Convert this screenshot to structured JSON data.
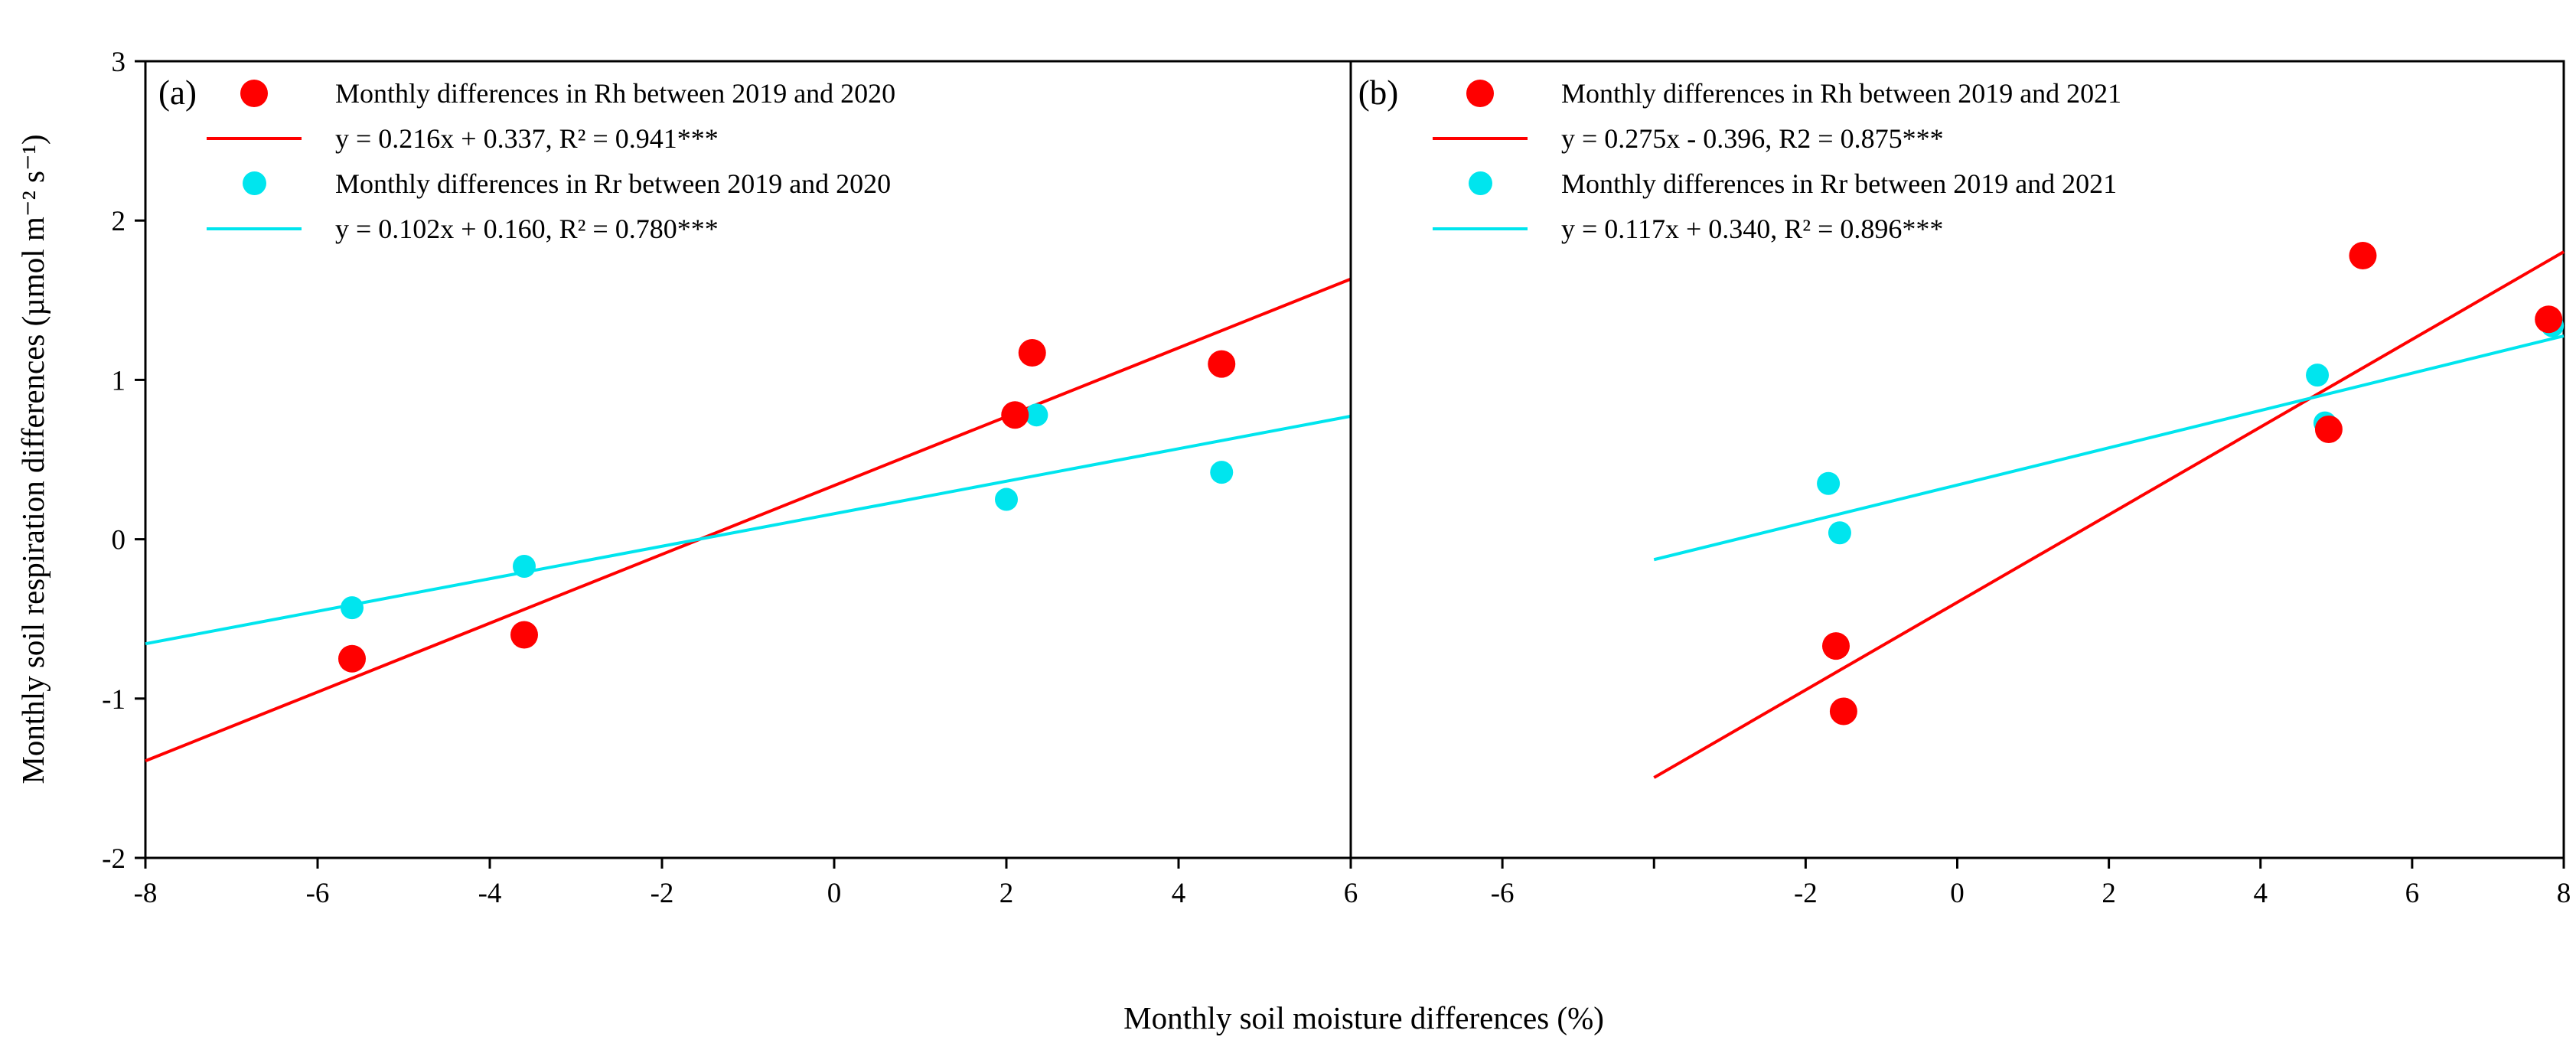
{
  "figure": {
    "x_axis_label": "Monthly soil moisture differences (%)",
    "y_axis_label": "Monthly soil respiration differences (µmol m⁻² s⁻¹)",
    "colors": {
      "red": "#ff0000",
      "cyan": "#00e5ee",
      "axis": "#000000",
      "background": "#ffffff"
    }
  },
  "chart_data": [
    {
      "type": "scatter",
      "panel_label": "(a)",
      "xlim": [
        -8,
        6
      ],
      "ylim": [
        -2,
        3
      ],
      "xticks": [
        {
          "value": -8,
          "label": "-8"
        },
        {
          "value": -6,
          "label": "-6"
        },
        {
          "value": -4,
          "label": "-4"
        },
        {
          "value": -2,
          "label": "-2"
        },
        {
          "value": 0,
          "label": "0"
        },
        {
          "value": 2,
          "label": "2"
        },
        {
          "value": 4,
          "label": "4"
        },
        {
          "value": 6,
          "label": "6"
        }
      ],
      "yticks": [
        {
          "value": -2,
          "label": "-2"
        },
        {
          "value": -1,
          "label": "-1"
        },
        {
          "value": 0,
          "label": "0"
        },
        {
          "value": 1,
          "label": "1"
        },
        {
          "value": 2,
          "label": "2"
        },
        {
          "value": 3,
          "label": "3"
        }
      ],
      "show_ytick_labels": true,
      "series": [
        {
          "name": "Rh-2019-2020",
          "label": "Monthly differences in Rh between 2019 and 2020",
          "equation": "y = 0.216x + 0.337, R² = 0.941***",
          "color_key": "red",
          "marker_radius": 18,
          "points": [
            [
              -5.6,
              -0.75
            ],
            [
              -3.6,
              -0.6
            ],
            [
              2.1,
              0.78
            ],
            [
              2.3,
              1.17
            ],
            [
              4.5,
              1.1
            ]
          ],
          "line": {
            "slope": 0.216,
            "intercept": 0.337,
            "x1": -8,
            "x2": 6
          }
        },
        {
          "name": "Rr-2019-2020",
          "label": "Monthly differences in Rr between 2019 and 2020",
          "equation": "y = 0.102x + 0.160, R² = 0.780***",
          "color_key": "cyan",
          "marker_radius": 15,
          "points": [
            [
              -5.6,
              -0.43
            ],
            [
              -3.6,
              -0.17
            ],
            [
              2.0,
              0.25
            ],
            [
              2.35,
              0.78
            ],
            [
              4.5,
              0.42
            ]
          ],
          "line": {
            "slope": 0.102,
            "intercept": 0.16,
            "x1": -8,
            "x2": 6
          }
        }
      ]
    },
    {
      "type": "scatter",
      "panel_label": "(b)",
      "xlim": [
        -8,
        8
      ],
      "ylim": [
        -2,
        3
      ],
      "xticks": [
        {
          "value": -6,
          "label": "-6"
        },
        {
          "value": -4,
          "label": ""
        },
        {
          "value": -2,
          "label": "-2"
        },
        {
          "value": 0,
          "label": "0"
        },
        {
          "value": 2,
          "label": "2"
        },
        {
          "value": 4,
          "label": "4"
        },
        {
          "value": 6,
          "label": "6"
        },
        {
          "value": 8,
          "label": "8"
        }
      ],
      "yticks": [
        {
          "value": -2,
          "label": "-2"
        },
        {
          "value": -1,
          "label": "-1"
        },
        {
          "value": 0,
          "label": "0"
        },
        {
          "value": 1,
          "label": "1"
        },
        {
          "value": 2,
          "label": "2"
        },
        {
          "value": 3,
          "label": "3"
        }
      ],
      "show_ytick_labels": false,
      "series": [
        {
          "name": "Rh-2019-2021",
          "label": "Monthly differences in Rh between 2019 and 2021",
          "equation": "y = 0.275x - 0.396, R2 = 0.875***",
          "color_key": "red",
          "marker_radius": 18,
          "points": [
            [
              -1.6,
              -0.67
            ],
            [
              -1.5,
              -1.08
            ],
            [
              4.9,
              0.69
            ],
            [
              5.35,
              1.78
            ],
            [
              7.8,
              1.38
            ]
          ],
          "line": {
            "slope": 0.275,
            "intercept": -0.396,
            "x1": -4,
            "x2": 8
          }
        },
        {
          "name": "Rr-2019-2021",
          "label": "Monthly differences in Rr between 2019 and 2021",
          "equation": "y = 0.117x + 0.340, R² = 0.896***",
          "color_key": "cyan",
          "marker_radius": 15,
          "points": [
            [
              -1.7,
              0.35
            ],
            [
              -1.55,
              0.04
            ],
            [
              4.75,
              1.03
            ],
            [
              4.85,
              0.73
            ],
            [
              7.85,
              1.34
            ]
          ],
          "line": {
            "slope": 0.117,
            "intercept": 0.34,
            "x1": -4,
            "x2": 8
          }
        }
      ]
    }
  ]
}
